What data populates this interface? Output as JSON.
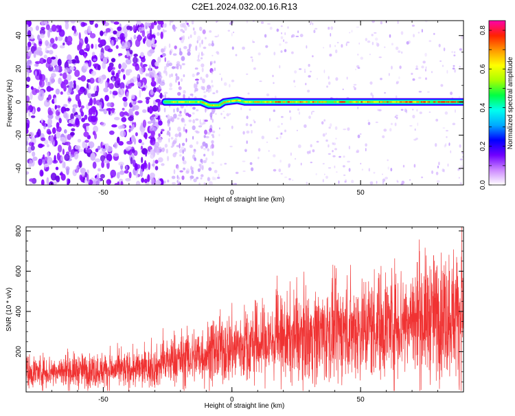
{
  "title": "C2E1.2024.032.00.16.R13",
  "colors": {
    "snr_line": "#f03232",
    "spectrum_line": "#f03232",
    "speckle": "#7a00ff"
  },
  "colormap": [
    "#ffffff",
    "#cc88ff",
    "#7000ff",
    "#0000ff",
    "#00aaff",
    "#00ffee",
    "#00ff44",
    "#aaff00",
    "#ffff00",
    "#ff9900",
    "#ff2200",
    "#ff00aa"
  ],
  "chart_data": [
    {
      "type": "heatmap",
      "xlabel": "Height of straight line (km)",
      "ylabel": "Frequency (Hz)",
      "xlim": [
        -80,
        90
      ],
      "ylim": [
        -50,
        49
      ],
      "xticks": [
        -50,
        0,
        50
      ],
      "yticks": [
        -40,
        -20,
        0,
        20,
        40
      ],
      "colorbar": {
        "label": "Normalized spectral amplitude",
        "range": [
          0,
          0.85
        ],
        "ticks": [
          0.0,
          0.2,
          0.4,
          0.6,
          0.8
        ]
      },
      "signal_band": {
        "x_start": -26,
        "x_end": 90,
        "frequency_path": [
          [
            -26,
            0
          ],
          [
            -12,
            0
          ],
          [
            -9,
            -2
          ],
          [
            -5,
            -2
          ],
          [
            -3,
            0
          ],
          [
            2,
            1
          ],
          [
            5,
            0
          ],
          [
            90,
            0
          ]
        ]
      },
      "noise_regions": [
        {
          "x_range": [
            -80,
            -27
          ],
          "density": "high"
        },
        {
          "x_range": [
            -27,
            90
          ],
          "density": "low"
        }
      ]
    },
    {
      "type": "line",
      "xlabel": "Height of straight line (km)",
      "ylabel": "SNR (10 * v/v)",
      "xlim": [
        -80,
        90
      ],
      "ylim": [
        0,
        820
      ],
      "xticks": [
        -50,
        0,
        50
      ],
      "yticks": [
        200,
        400,
        600,
        800
      ],
      "trend": [
        [
          -80,
          100
        ],
        [
          -60,
          105
        ],
        [
          -40,
          110
        ],
        [
          -30,
          120
        ],
        [
          -25,
          150
        ],
        [
          -10,
          190
        ],
        [
          0,
          220
        ],
        [
          20,
          260
        ],
        [
          40,
          300
        ],
        [
          60,
          340
        ],
        [
          80,
          380
        ],
        [
          90,
          400
        ]
      ]
    }
  ]
}
